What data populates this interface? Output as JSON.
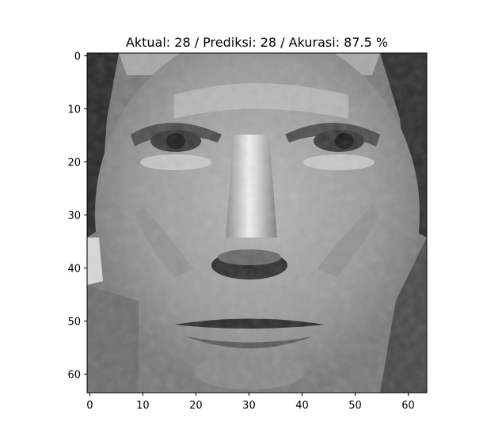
{
  "chart_data": {
    "type": "heatmap",
    "title": "Aktual: 28 / Prediksi: 28 / Akurasi: 87.5 %",
    "image_description": "grayscale face photograph",
    "colormap": "gray",
    "image_shape": [
      64,
      64
    ],
    "xlim": [
      -0.5,
      63.5
    ],
    "ylim": [
      63.5,
      -0.5
    ],
    "x_ticks": [
      0,
      10,
      20,
      30,
      40,
      50,
      60
    ],
    "y_ticks": [
      0,
      10,
      20,
      30,
      40,
      50,
      60
    ],
    "x_tick_labels": [
      "0",
      "10",
      "20",
      "30",
      "40",
      "50",
      "60"
    ],
    "y_tick_labels": [
      "0",
      "10",
      "20",
      "30",
      "40",
      "50",
      "60"
    ],
    "grid": false
  }
}
